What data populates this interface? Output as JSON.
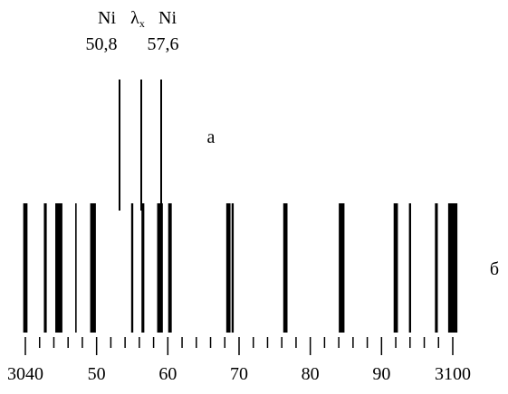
{
  "chart_data": {
    "type": "spectrum",
    "panel_labels": [
      "а",
      "б"
    ],
    "reference_lines": [
      {
        "name": "Ni",
        "label": "50,8"
      },
      {
        "name": "λ",
        "subscript": "x"
      },
      {
        "name": "Ni",
        "label": "57,6"
      }
    ],
    "x": [
      3040.0,
      3042.8,
      3044.7,
      3047.1,
      3049.5,
      3055.0,
      3056.5,
      3058.9,
      3060.3,
      3068.5,
      3069.1,
      3076.5,
      3084.4,
      3092.0,
      3094.0,
      3097.7,
      3100.0
    ],
    "widths": [
      0.6,
      0.4,
      1.0,
      0.2,
      0.8,
      0.3,
      0.4,
      0.8,
      0.5,
      0.6,
      0.3,
      0.6,
      0.8,
      0.6,
      0.3,
      0.4,
      1.3
    ],
    "color": "#000000",
    "xlim": [
      3040,
      3100
    ],
    "xticks": [
      3040,
      {
        "value": 3050,
        "label": "50"
      },
      {
        "value": 3060,
        "label": "60"
      },
      {
        "value": 3070,
        "label": "70"
      },
      {
        "value": 3080,
        "label": "80"
      },
      {
        "value": 3090,
        "label": "90"
      },
      3100
    ],
    "minor_xticks": [
      3042,
      3044,
      3046,
      3048,
      3052,
      3054,
      3056,
      3058,
      3062,
      3064,
      3066,
      3068,
      3072,
      3074,
      3076,
      3078,
      3082,
      3084,
      3086,
      3088,
      3092,
      3094,
      3096,
      3098
    ]
  }
}
